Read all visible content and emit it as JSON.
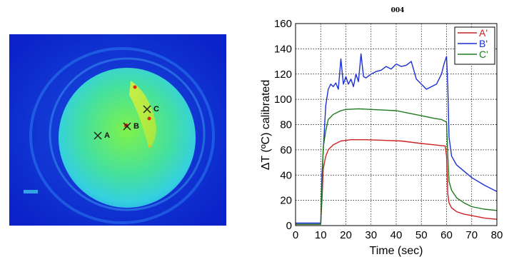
{
  "thermal_image": {
    "markers": [
      {
        "label": "A"
      },
      {
        "label": "B"
      },
      {
        "label": "C"
      }
    ]
  },
  "chart_data": {
    "type": "line",
    "title": "004",
    "xlabel": "Time (sec)",
    "ylabel": "ΔT (ºC) calibrated",
    "xlim": [
      0,
      80
    ],
    "ylim": [
      0,
      160
    ],
    "xticks": [
      0,
      10,
      20,
      30,
      40,
      50,
      60,
      70,
      80
    ],
    "yticks": [
      0,
      20,
      40,
      60,
      80,
      100,
      120,
      140,
      160
    ],
    "grid": true,
    "legend_position": "top-right",
    "series": [
      {
        "name": "A'",
        "color": "#cc2222",
        "x": [
          0,
          5,
          10,
          10.5,
          11,
          12,
          13,
          15,
          18,
          22,
          28,
          35,
          42,
          50,
          55,
          59.5,
          60,
          60.5,
          61,
          62,
          64,
          67,
          70,
          75,
          80
        ],
        "y": [
          1,
          1,
          1,
          20,
          45,
          55,
          60,
          64,
          67,
          68,
          68,
          67.5,
          67,
          65,
          64,
          63,
          55,
          25,
          18,
          14,
          11,
          9,
          8,
          6,
          5
        ]
      },
      {
        "name": "B'",
        "color": "#1b2fd6",
        "x": [
          0,
          5,
          10,
          10.5,
          11,
          12,
          13,
          14,
          15,
          16,
          17,
          18,
          19,
          20,
          21,
          22,
          23,
          24,
          25,
          26,
          27,
          28,
          30,
          32,
          34,
          36,
          38,
          40,
          42,
          44,
          46,
          48,
          50,
          52,
          54,
          56,
          58,
          59,
          60,
          60.5,
          61,
          62,
          64,
          67,
          70,
          75,
          80
        ],
        "y": [
          2,
          2,
          2,
          40,
          60,
          95,
          108,
          112,
          110,
          113,
          108,
          132,
          112,
          118,
          112,
          116,
          110,
          120,
          114,
          136,
          118,
          117,
          120,
          122,
          123,
          126,
          124,
          128,
          126,
          127,
          130,
          116,
          112,
          108,
          110,
          112,
          120,
          128,
          134,
          110,
          70,
          55,
          48,
          43,
          38,
          32,
          27
        ]
      },
      {
        "name": "C'",
        "color": "#1e7a1e",
        "x": [
          0,
          5,
          10,
          10.5,
          11,
          12,
          13,
          15,
          18,
          20,
          25,
          30,
          35,
          40,
          45,
          50,
          55,
          58,
          60,
          60.5,
          61,
          62,
          64,
          67,
          70,
          75,
          80
        ],
        "y": [
          1,
          1,
          1,
          30,
          62,
          75,
          84,
          88,
          91,
          92,
          92.5,
          92,
          91.5,
          91,
          89,
          87,
          85,
          84,
          82,
          55,
          35,
          28,
          22,
          18,
          15,
          13,
          12
        ]
      }
    ]
  }
}
